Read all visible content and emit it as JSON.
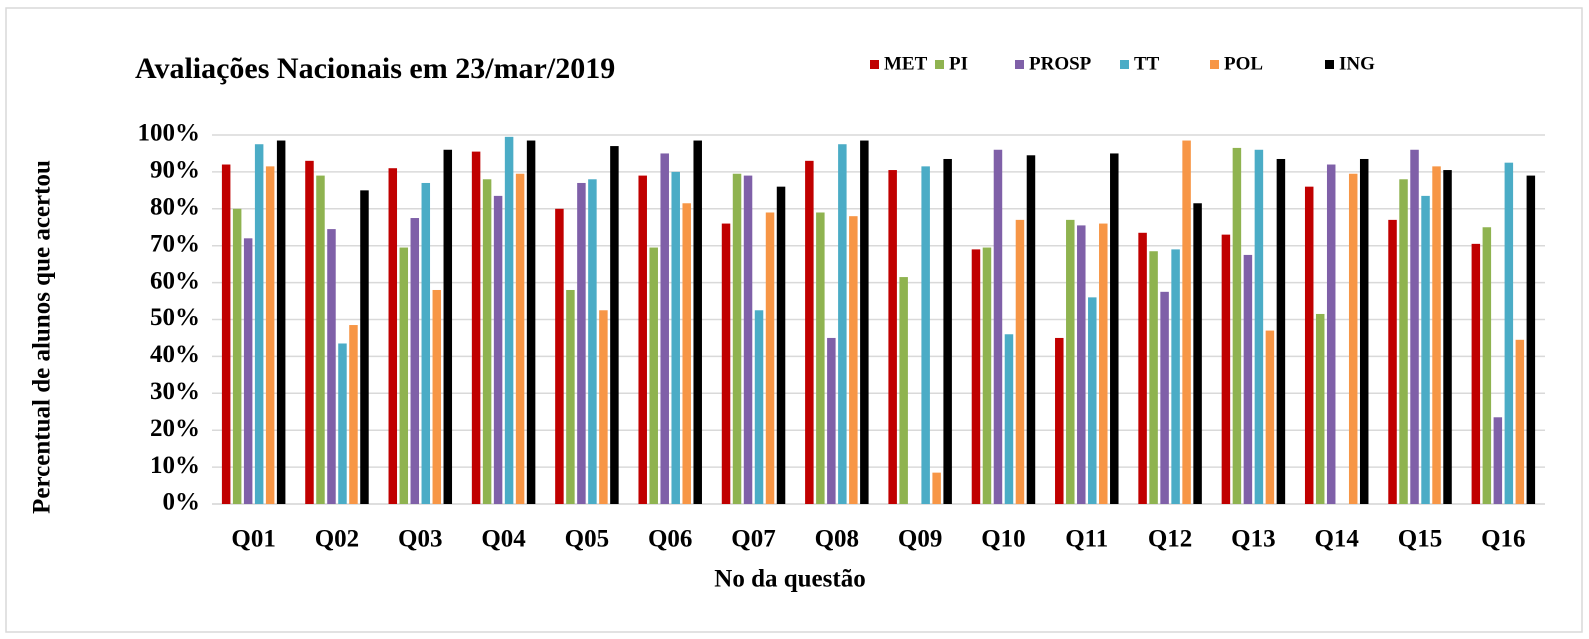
{
  "chart_data": {
    "type": "bar",
    "title": "Avaliações  Nacionais  em 23/mar/2019",
    "x_label": "No da questão",
    "y_label": "Percentual de alunos que acertou",
    "categories": [
      "Q01",
      "Q02",
      "Q03",
      "Q04",
      "Q05",
      "Q06",
      "Q07",
      "Q08",
      "Q09",
      "Q10",
      "Q11",
      "Q12",
      "Q13",
      "Q14",
      "Q15",
      "Q16"
    ],
    "series": [
      {
        "name": "MET",
        "color": "#c00000",
        "values": [
          92,
          93,
          91,
          95.5,
          80,
          89,
          76,
          93,
          90.5,
          69,
          45,
          73.5,
          73,
          86,
          77,
          70.5
        ]
      },
      {
        "name": "PI",
        "color": "#8fb350",
        "values": [
          80,
          89,
          69.5,
          88,
          58,
          69.5,
          89.5,
          79,
          61.5,
          69.5,
          77,
          68.5,
          96.5,
          51.5,
          88,
          75
        ]
      },
      {
        "name": "PROSP",
        "color": "#7f60a8",
        "values": [
          72,
          74.5,
          77.5,
          83.5,
          87,
          95,
          89,
          45,
          0,
          96,
          75.5,
          57.5,
          67.5,
          92,
          96,
          23.5
        ]
      },
      {
        "name": "TT",
        "color": "#4bacc6",
        "values": [
          97.5,
          43.5,
          87,
          99.5,
          88,
          90,
          52.5,
          97.5,
          91.5,
          46,
          56,
          69,
          96,
          0,
          83.5,
          92.5
        ]
      },
      {
        "name": "POL",
        "color": "#f79646",
        "values": [
          91.5,
          48.5,
          58,
          89.5,
          52.5,
          81.5,
          79,
          78,
          8.5,
          77,
          76,
          98.5,
          47,
          89.5,
          91.5,
          44.5
        ]
      },
      {
        "name": "ING",
        "color": "#000000",
        "values": [
          98.5,
          85,
          96,
          98.5,
          97,
          98.5,
          86,
          98.5,
          93.5,
          94.5,
          95,
          81.5,
          93.5,
          93.5,
          90.5,
          89
        ]
      }
    ],
    "ylim": [
      0,
      100
    ],
    "yticks": [
      {
        "value": 0,
        "label": "0%"
      },
      {
        "value": 10,
        "label": "10%"
      },
      {
        "value": 20,
        "label": "20%"
      },
      {
        "value": 30,
        "label": "30%"
      },
      {
        "value": 40,
        "label": "40%"
      },
      {
        "value": 50,
        "label": "50%"
      },
      {
        "value": 60,
        "label": "60%"
      },
      {
        "value": 70,
        "label": "70%"
      },
      {
        "value": 80,
        "label": "80%"
      },
      {
        "value": 90,
        "label": "90%"
      },
      {
        "value": 100,
        "label": "100%"
      }
    ],
    "grid": true,
    "legend": "top-right"
  }
}
